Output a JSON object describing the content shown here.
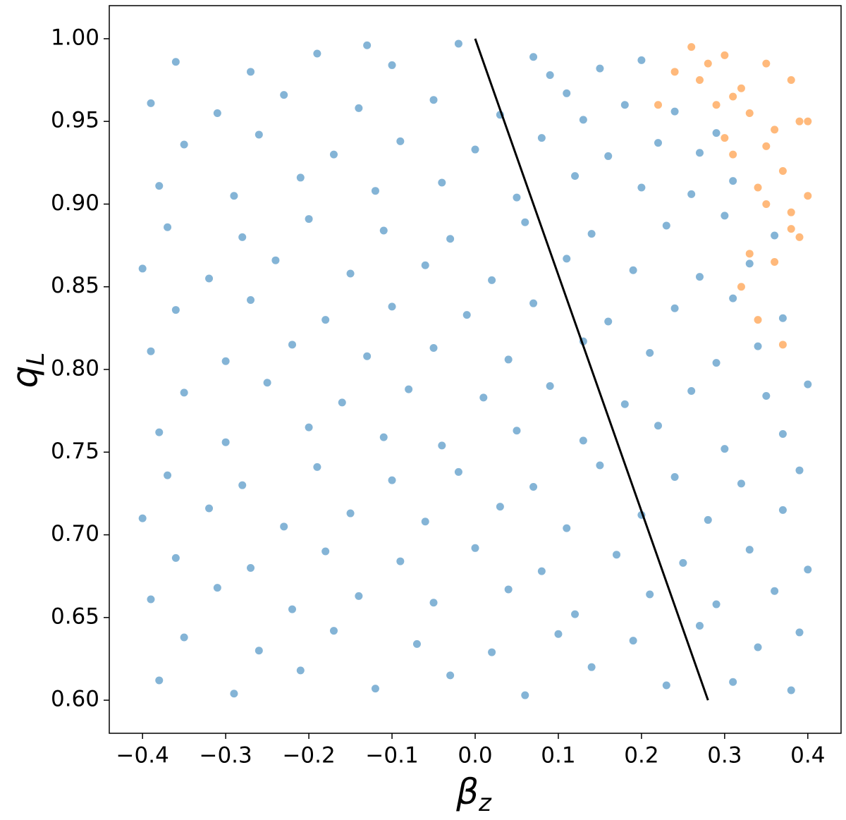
{
  "chart_data": {
    "type": "scatter",
    "xlabel": {
      "base": "β",
      "sub": "z"
    },
    "ylabel": {
      "base": "q",
      "sub": "L"
    },
    "xlim": [
      -0.44,
      0.44
    ],
    "ylim": [
      0.58,
      1.02
    ],
    "xticks": [
      {
        "value": -0.4,
        "label": "−0.4"
      },
      {
        "value": -0.3,
        "label": "−0.3"
      },
      {
        "value": -0.2,
        "label": "−0.2"
      },
      {
        "value": -0.1,
        "label": "−0.1"
      },
      {
        "value": 0,
        "label": "0.0"
      },
      0.1,
      0.2,
      0.3,
      0.4
    ],
    "yticks": [
      {
        "value": 0.6,
        "label": "0.60"
      },
      {
        "value": 0.65,
        "label": "0.65"
      },
      {
        "value": 0.7,
        "label": "0.70"
      },
      {
        "value": 0.75,
        "label": "0.75"
      },
      {
        "value": 0.8,
        "label": "0.80"
      },
      {
        "value": 0.85,
        "label": "0.85"
      },
      {
        "value": 0.9,
        "label": "0.90"
      },
      {
        "value": 0.95,
        "label": "0.95"
      },
      {
        "value": 1,
        "label": "1.00"
      }
    ],
    "series": [
      {
        "color": "#1f77b4",
        "x": [
          -0.38,
          -0.29,
          -0.21,
          -0.12,
          -0.03,
          0.06,
          0.14,
          0.23,
          0.31,
          0.38,
          -0.35,
          -0.26,
          -0.17,
          -0.07,
          0.02,
          0.1,
          0.19,
          0.27,
          0.34,
          0.39,
          -0.39,
          -0.31,
          -0.22,
          -0.14,
          -0.05,
          0.04,
          0.12,
          0.21,
          0.29,
          0.36,
          -0.36,
          -0.27,
          -0.18,
          -0.09,
          0.0,
          0.08,
          0.17,
          0.25,
          0.33,
          0.4,
          -0.4,
          -0.32,
          -0.23,
          -0.15,
          -0.06,
          0.03,
          0.11,
          0.2,
          0.28,
          0.37,
          -0.37,
          -0.28,
          -0.19,
          -0.1,
          -0.02,
          0.07,
          0.15,
          0.24,
          0.32,
          0.39,
          -0.38,
          -0.3,
          -0.2,
          -0.11,
          -0.04,
          0.05,
          0.13,
          0.22,
          0.3,
          0.37,
          -0.35,
          -0.25,
          -0.16,
          -0.08,
          0.01,
          0.09,
          0.18,
          0.26,
          0.35,
          0.4,
          -0.39,
          -0.3,
          -0.22,
          -0.13,
          -0.05,
          0.04,
          0.13,
          0.21,
          0.29,
          0.34,
          -0.36,
          -0.27,
          -0.18,
          -0.1,
          -0.01,
          0.07,
          0.16,
          0.24,
          0.31,
          0.37,
          -0.4,
          -0.32,
          -0.24,
          -0.15,
          -0.06,
          0.02,
          0.11,
          0.19,
          0.27,
          0.33,
          -0.37,
          -0.28,
          -0.2,
          -0.11,
          -0.03,
          0.06,
          0.14,
          0.23,
          0.3,
          0.36,
          -0.38,
          -0.29,
          -0.21,
          -0.12,
          -0.04,
          0.05,
          0.12,
          0.2,
          0.26,
          0.31,
          -0.35,
          -0.26,
          -0.17,
          -0.09,
          0.0,
          0.08,
          0.16,
          0.22,
          0.27,
          0.29,
          -0.39,
          -0.31,
          -0.23,
          -0.14,
          -0.05,
          0.03,
          0.11,
          0.18,
          0.24,
          0.13,
          -0.36,
          -0.27,
          -0.19,
          -0.1,
          -0.02,
          0.07,
          0.15,
          0.2,
          0.09,
          -0.13
        ],
        "y": [
          0.612,
          0.604,
          0.618,
          0.607,
          0.615,
          0.603,
          0.62,
          0.609,
          0.611,
          0.606,
          0.638,
          0.63,
          0.642,
          0.634,
          0.629,
          0.64,
          0.636,
          0.645,
          0.632,
          0.641,
          0.661,
          0.668,
          0.655,
          0.663,
          0.659,
          0.667,
          0.652,
          0.664,
          0.658,
          0.666,
          0.686,
          0.68,
          0.69,
          0.684,
          0.692,
          0.678,
          0.688,
          0.683,
          0.691,
          0.679,
          0.71,
          0.716,
          0.705,
          0.713,
          0.708,
          0.717,
          0.704,
          0.712,
          0.709,
          0.715,
          0.736,
          0.73,
          0.741,
          0.733,
          0.738,
          0.729,
          0.742,
          0.735,
          0.731,
          0.739,
          0.762,
          0.756,
          0.765,
          0.759,
          0.754,
          0.763,
          0.757,
          0.766,
          0.752,
          0.761,
          0.786,
          0.792,
          0.78,
          0.788,
          0.783,
          0.79,
          0.779,
          0.787,
          0.784,
          0.791,
          0.811,
          0.805,
          0.815,
          0.808,
          0.813,
          0.806,
          0.817,
          0.81,
          0.804,
          0.814,
          0.836,
          0.842,
          0.83,
          0.838,
          0.833,
          0.84,
          0.829,
          0.837,
          0.843,
          0.831,
          0.861,
          0.855,
          0.866,
          0.858,
          0.863,
          0.854,
          0.867,
          0.86,
          0.856,
          0.864,
          0.886,
          0.88,
          0.891,
          0.884,
          0.879,
          0.889,
          0.882,
          0.887,
          0.893,
          0.881,
          0.911,
          0.905,
          0.916,
          0.908,
          0.913,
          0.904,
          0.917,
          0.91,
          0.906,
          0.914,
          0.936,
          0.942,
          0.93,
          0.938,
          0.933,
          0.94,
          0.929,
          0.937,
          0.931,
          0.943,
          0.961,
          0.955,
          0.966,
          0.958,
          0.963,
          0.954,
          0.967,
          0.96,
          0.956,
          0.951,
          0.986,
          0.98,
          0.991,
          0.984,
          0.997,
          0.989,
          0.982,
          0.987,
          0.978,
          0.996
        ]
      },
      {
        "color": "#ff7f0e",
        "x": [
          0.3,
          0.32,
          0.35,
          0.38,
          0.39,
          0.36,
          0.33,
          0.31,
          0.37,
          0.4,
          0.34,
          0.29,
          0.26,
          0.24,
          0.28,
          0.3,
          0.35,
          0.38,
          0.33,
          0.36,
          0.39,
          0.32,
          0.37,
          0.22,
          0.27,
          0.34,
          0.38,
          0.35,
          0.4,
          0.31
        ],
        "y": [
          0.99,
          0.97,
          0.985,
          0.975,
          0.95,
          0.945,
          0.955,
          0.93,
          0.92,
          0.905,
          0.91,
          0.96,
          0.995,
          0.98,
          0.985,
          0.94,
          0.9,
          0.885,
          0.87,
          0.865,
          0.88,
          0.85,
          0.815,
          0.96,
          0.975,
          0.83,
          0.895,
          0.935,
          0.95,
          0.965
        ]
      }
    ],
    "lines": [
      {
        "color": "#000000",
        "x": [
          0,
          0.28
        ],
        "y": [
          1,
          0.6
        ]
      }
    ]
  }
}
